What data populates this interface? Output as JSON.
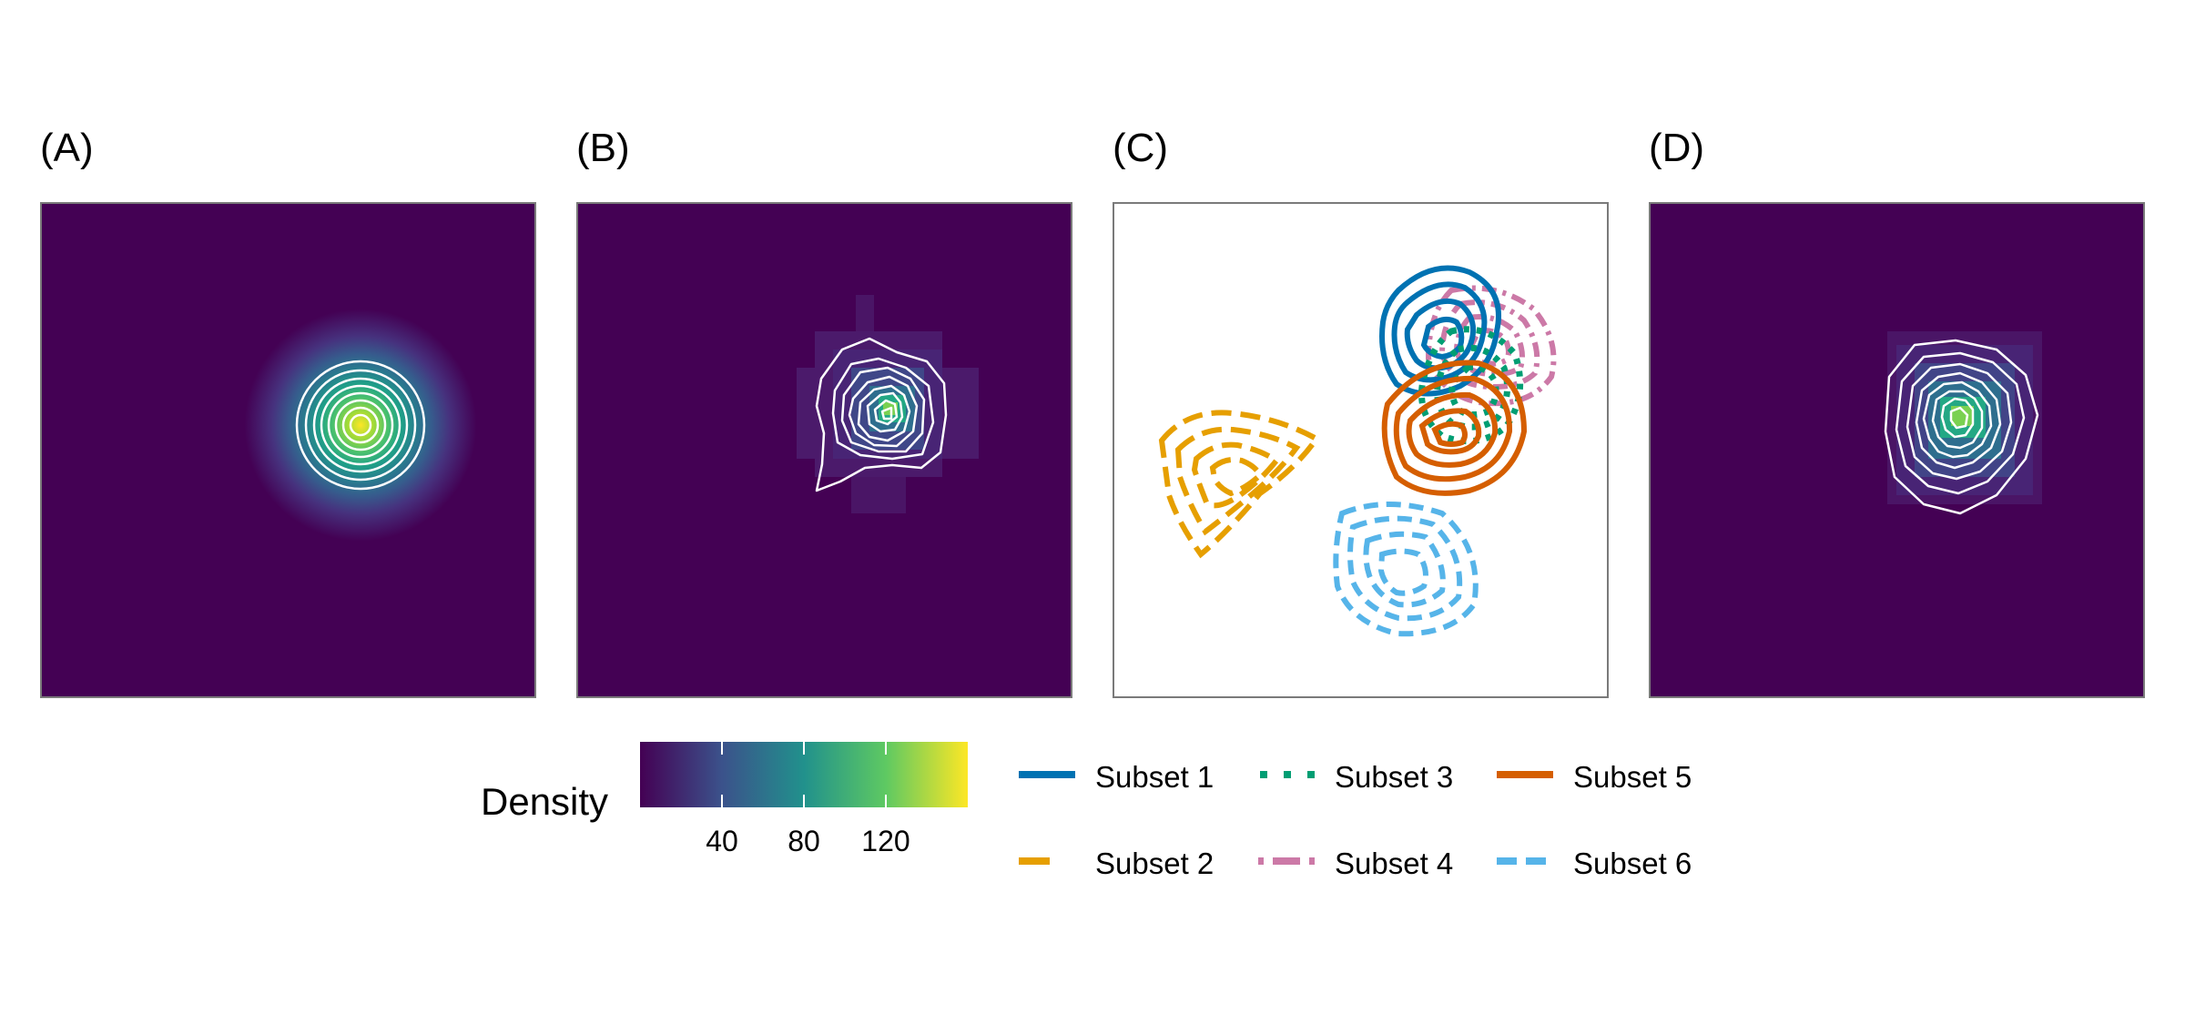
{
  "panels": [
    {
      "label": "(A)",
      "kind": "density",
      "variant": "smooth"
    },
    {
      "label": "(B)",
      "kind": "density",
      "variant": "binned"
    },
    {
      "label": "(C)",
      "kind": "contours"
    },
    {
      "label": "(D)",
      "kind": "density",
      "variant": "binned-centered"
    }
  ],
  "legend": {
    "title": "Density",
    "ticks": [
      "40",
      "80",
      "120"
    ],
    "colormap": [
      "#440154",
      "#3b528b",
      "#21918c",
      "#5ec962",
      "#fde725"
    ],
    "items": [
      {
        "label": "Subset 1",
        "color": "#0072B2",
        "dash": "solid"
      },
      {
        "label": "Subset 2",
        "color": "#E69F00",
        "dash": "long-dash"
      },
      {
        "label": "Subset 3",
        "color": "#009E73",
        "dash": "dotted"
      },
      {
        "label": "Subset 4",
        "color": "#CC79A7",
        "dash": "dash-dot"
      },
      {
        "label": "Subset 5",
        "color": "#D55E00",
        "dash": "solid"
      },
      {
        "label": "Subset 6",
        "color": "#56B4E9",
        "dash": "dashed"
      }
    ]
  }
}
